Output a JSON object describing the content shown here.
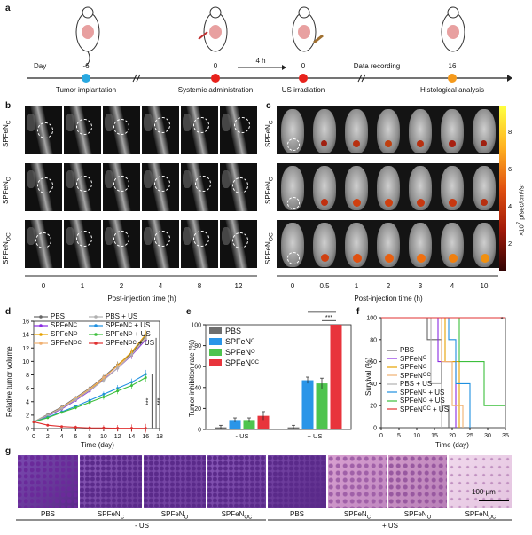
{
  "panels": {
    "a": "a",
    "b": "b",
    "c": "c",
    "d": "d",
    "e": "e",
    "f": "f",
    "g": "g"
  },
  "timeline": {
    "day_label": "Day",
    "events": [
      {
        "day": "-6",
        "label": "Tumor implantation",
        "color": "#29a8e0"
      },
      {
        "day": "0",
        "label": "Systemic administration",
        "color": "#e8221c"
      },
      {
        "day": "0",
        "label": "US irradiation",
        "color": "#e8221c"
      },
      {
        "day": "16",
        "label": "Histological analysis",
        "color": "#f59a1c"
      }
    ],
    "interval": "4 h",
    "recording": "Data recording"
  },
  "groups": {
    "c": "SPFeN",
    "c_sub": "C",
    "o": "SPFeN",
    "o_sub": "O",
    "oc": "SPFeN",
    "oc_sub": "OC"
  },
  "mri": {
    "times": [
      "0",
      "1",
      "2",
      "4",
      "8",
      "12"
    ],
    "xlabel": "Post-injection time (h)"
  },
  "ivis": {
    "times": [
      "0",
      "0.5",
      "1",
      "2",
      "3",
      "4",
      "10"
    ],
    "xlabel": "Post-injection time (h)",
    "colorbar": {
      "ticks": [
        "8",
        "6",
        "4",
        "2"
      ],
      "label": "×10⁷ p/sec/cm²/sr",
      "unit_prefix": "×10",
      "exp": "7",
      "unit_rest": " p/sec/cm²/sr"
    }
  },
  "chart_data": [
    {
      "panel": "d",
      "type": "line",
      "xlabel": "Time (day)",
      "ylabel": "Relative tumor volume",
      "x": [
        0,
        2,
        4,
        6,
        8,
        10,
        12,
        14,
        16
      ],
      "xticks": [
        "0",
        "2",
        "4",
        "6",
        "8",
        "10",
        "12",
        "14",
        "16",
        "18"
      ],
      "yticks": [
        "0",
        "2",
        "4",
        "6",
        "8",
        "10",
        "12",
        "14",
        "16"
      ],
      "xlim": [
        0,
        18
      ],
      "ylim": [
        0,
        16
      ],
      "series": [
        {
          "name": "PBS",
          "color": "#666666",
          "values": [
            1,
            2.1,
            3.2,
            4.6,
            6.0,
            7.7,
            9.5,
            11.2,
            13.8
          ]
        },
        {
          "name": "SPFeNC",
          "color": "#8a2be2",
          "values": [
            1,
            1.9,
            2.9,
            4.2,
            5.6,
            7.3,
            9.0,
            10.9,
            13.2
          ]
        },
        {
          "name": "SPFeNO",
          "color": "#e6a100",
          "values": [
            1,
            2.0,
            3.0,
            4.4,
            5.8,
            7.5,
            9.4,
            11.4,
            14.0
          ]
        },
        {
          "name": "SPFeNOC",
          "color": "#f0b070",
          "values": [
            1,
            2.0,
            3.1,
            4.5,
            5.9,
            7.6,
            9.3,
            11.0,
            13.5
          ]
        },
        {
          "name": "PBS + US",
          "color": "#b0b0b0",
          "values": [
            1,
            2.0,
            3.0,
            4.3,
            5.7,
            7.2,
            9.0,
            11.0,
            13.4
          ]
        },
        {
          "name": "SPFeNC + US",
          "color": "#1e8fe0",
          "values": [
            1,
            1.7,
            2.5,
            3.3,
            4.2,
            5.1,
            6.0,
            6.9,
            8.1
          ]
        },
        {
          "name": "SPFeNO + US",
          "color": "#3cbf3c",
          "values": [
            1,
            1.6,
            2.4,
            3.1,
            3.9,
            4.7,
            5.6,
            6.4,
            7.6
          ]
        },
        {
          "name": "SPFeNOC + US",
          "color": "#e03030",
          "values": [
            1,
            0.5,
            0.3,
            0.2,
            0.1,
            0.1,
            0.05,
            0.05,
            0.05
          ]
        }
      ],
      "annotations": [
        "***",
        "***"
      ]
    },
    {
      "panel": "e",
      "type": "bar",
      "ylabel": "Tumor inhibition rate (%)",
      "yticks": [
        "0",
        "20",
        "40",
        "60",
        "80",
        "100"
      ],
      "ylim": [
        0,
        100
      ],
      "groups": [
        "- US",
        "+ US"
      ],
      "series": [
        {
          "name": "PBS",
          "color": "#6e6e6e",
          "values": [
            2,
            2
          ]
        },
        {
          "name": "SPFeNC",
          "color": "#2a95e8",
          "values": [
            9,
            47
          ]
        },
        {
          "name": "SPFeNO",
          "color": "#4ec44e",
          "values": [
            9,
            44
          ]
        },
        {
          "name": "SPFeNOC",
          "color": "#e8343c",
          "values": [
            13,
            100
          ]
        }
      ],
      "errors": [
        [
          2,
          2
        ],
        [
          2,
          3
        ],
        [
          2,
          5
        ],
        [
          4,
          0
        ]
      ],
      "annotations": [
        "***",
        "***"
      ]
    },
    {
      "panel": "f",
      "type": "line",
      "xlabel": "Time (day)",
      "ylabel": "Survival (%)",
      "xticks": [
        "0",
        "5",
        "10",
        "15",
        "20",
        "25",
        "30",
        "35"
      ],
      "yticks": [
        "0",
        "20",
        "40",
        "60",
        "80",
        "100"
      ],
      "xlim": [
        0,
        35
      ],
      "ylim": [
        0,
        100
      ],
      "series": [
        {
          "name": "PBS",
          "color": "#666666",
          "steps": [
            [
              0,
              100
            ],
            [
              13,
              100
            ],
            [
              13,
              80
            ],
            [
              17,
              80
            ],
            [
              17,
              20
            ],
            [
              19,
              20
            ],
            [
              19,
              0
            ]
          ]
        },
        {
          "name": "SPFeNC",
          "color": "#8a2be2",
          "steps": [
            [
              0,
              100
            ],
            [
              16,
              100
            ],
            [
              16,
              60
            ],
            [
              21,
              60
            ],
            [
              21,
              0
            ]
          ]
        },
        {
          "name": "SPFeNO",
          "color": "#e6a100",
          "steps": [
            [
              0,
              100
            ],
            [
              18,
              100
            ],
            [
              18,
              60
            ],
            [
              22,
              60
            ],
            [
              22,
              0
            ]
          ]
        },
        {
          "name": "SPFeNOC",
          "color": "#f0b070",
          "steps": [
            [
              0,
              100
            ],
            [
              17,
              100
            ],
            [
              17,
              60
            ],
            [
              20,
              60
            ],
            [
              20,
              20
            ],
            [
              23,
              20
            ],
            [
              23,
              0
            ]
          ]
        },
        {
          "name": "PBS + US",
          "color": "#b0b0b0",
          "steps": [
            [
              0,
              100
            ],
            [
              14,
              100
            ],
            [
              14,
              40
            ],
            [
              17,
              40
            ],
            [
              17,
              0
            ]
          ]
        },
        {
          "name": "SPFeNC + US",
          "color": "#1e8fe0",
          "steps": [
            [
              0,
              100
            ],
            [
              19,
              100
            ],
            [
              19,
              80
            ],
            [
              21,
              80
            ],
            [
              21,
              40
            ],
            [
              25,
              40
            ],
            [
              25,
              0
            ]
          ]
        },
        {
          "name": "SPFeNO + US",
          "color": "#3cbf3c",
          "steps": [
            [
              0,
              100
            ],
            [
              22,
              100
            ],
            [
              22,
              60
            ],
            [
              29,
              60
            ],
            [
              29,
              20
            ],
            [
              35,
              20
            ]
          ]
        },
        {
          "name": "SPFeNOC + US",
          "color": "#e03030",
          "steps": [
            [
              0,
              100
            ],
            [
              35,
              100
            ]
          ]
        }
      ],
      "annotations": [
        "*"
      ]
    }
  ],
  "legend_d": [
    {
      "main": "PBS",
      "sub": "",
      "tail": "",
      "color": "#666666"
    },
    {
      "main": "SPFeN",
      "sub": "C",
      "tail": "",
      "color": "#8a2be2"
    },
    {
      "main": "SPFeN",
      "sub": "O",
      "tail": "",
      "color": "#e6a100"
    },
    {
      "main": "SPFeN",
      "sub": "OC",
      "tail": "",
      "color": "#f0b070"
    },
    {
      "main": "PBS",
      "sub": "",
      "tail": " + US",
      "color": "#b0b0b0"
    },
    {
      "main": "SPFeN",
      "sub": "C",
      "tail": " + US",
      "color": "#1e8fe0"
    },
    {
      "main": "SPFeN",
      "sub": "O",
      "tail": " + US",
      "color": "#3cbf3c"
    },
    {
      "main": "SPFeN",
      "sub": "OC",
      "tail": " + US",
      "color": "#e03030"
    }
  ],
  "legend_e": [
    {
      "main": "PBS",
      "sub": ""
    },
    {
      "main": "SPFeN",
      "sub": "C"
    },
    {
      "main": "SPFeN",
      "sub": "O"
    },
    {
      "main": "SPFeN",
      "sub": "OC"
    }
  ],
  "histology": {
    "labels": [
      "PBS",
      "SPFeN",
      "SPFeN",
      "SPFeN",
      "PBS",
      "SPFeN",
      "SPFeN",
      "SPFeN"
    ],
    "subs": [
      "",
      "C",
      "O",
      "OC",
      "",
      "C",
      "O",
      "OC"
    ],
    "groups": [
      "- US",
      "+ US"
    ],
    "scalebar": "100 µm"
  }
}
